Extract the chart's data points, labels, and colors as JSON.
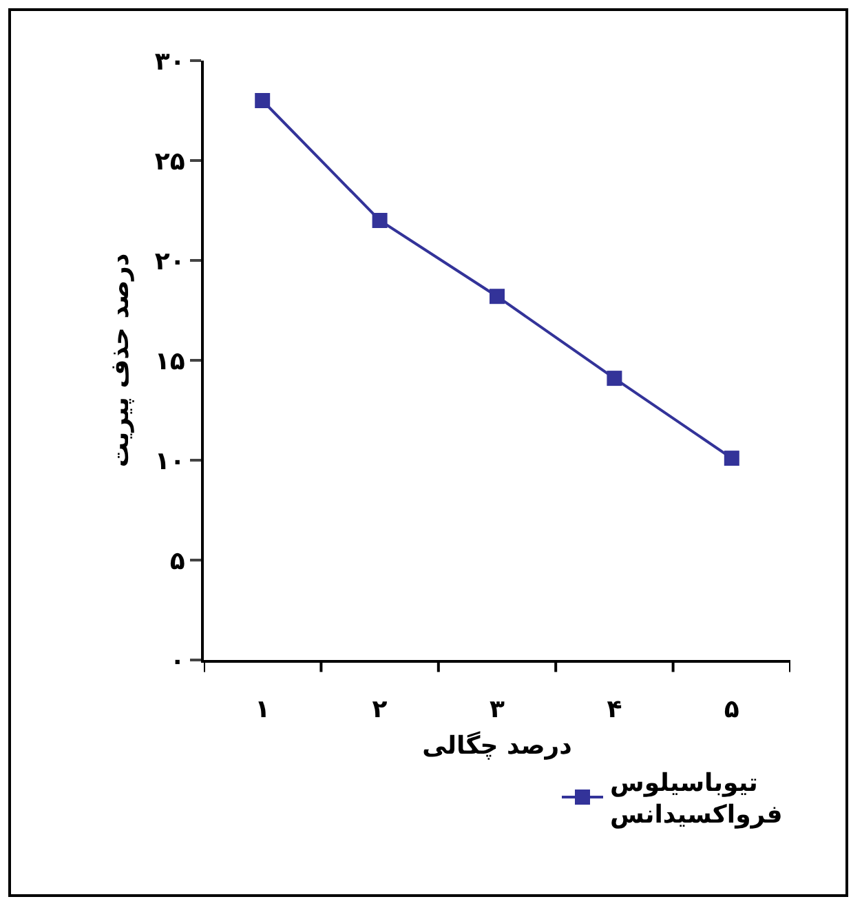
{
  "chart_data": {
    "type": "line",
    "xlabel": "درصد چگالی",
    "ylabel": "درصد حذف پیریت",
    "categories": [
      "۱",
      "۲",
      "۳",
      "۴",
      "۵"
    ],
    "series": [
      {
        "name": "تیوباسیلوس فرواکسیدانس",
        "color": "#333399",
        "values": [
          28,
          22,
          18.2,
          14.1,
          10.1
        ]
      }
    ],
    "ylim": [
      0,
      30
    ],
    "yticks": [
      {
        "value": 0,
        "label": "۰"
      },
      {
        "value": 5,
        "label": "۵"
      },
      {
        "value": 10,
        "label": "۱۰"
      },
      {
        "value": 15,
        "label": "۱۵"
      },
      {
        "value": 20,
        "label": "۲۰"
      },
      {
        "value": 25,
        "label": "۲۵"
      },
      {
        "value": 30,
        "label": "۳۰"
      }
    ],
    "grid": false,
    "legend": "bottom right",
    "marker": "square",
    "line_style": "solid"
  }
}
